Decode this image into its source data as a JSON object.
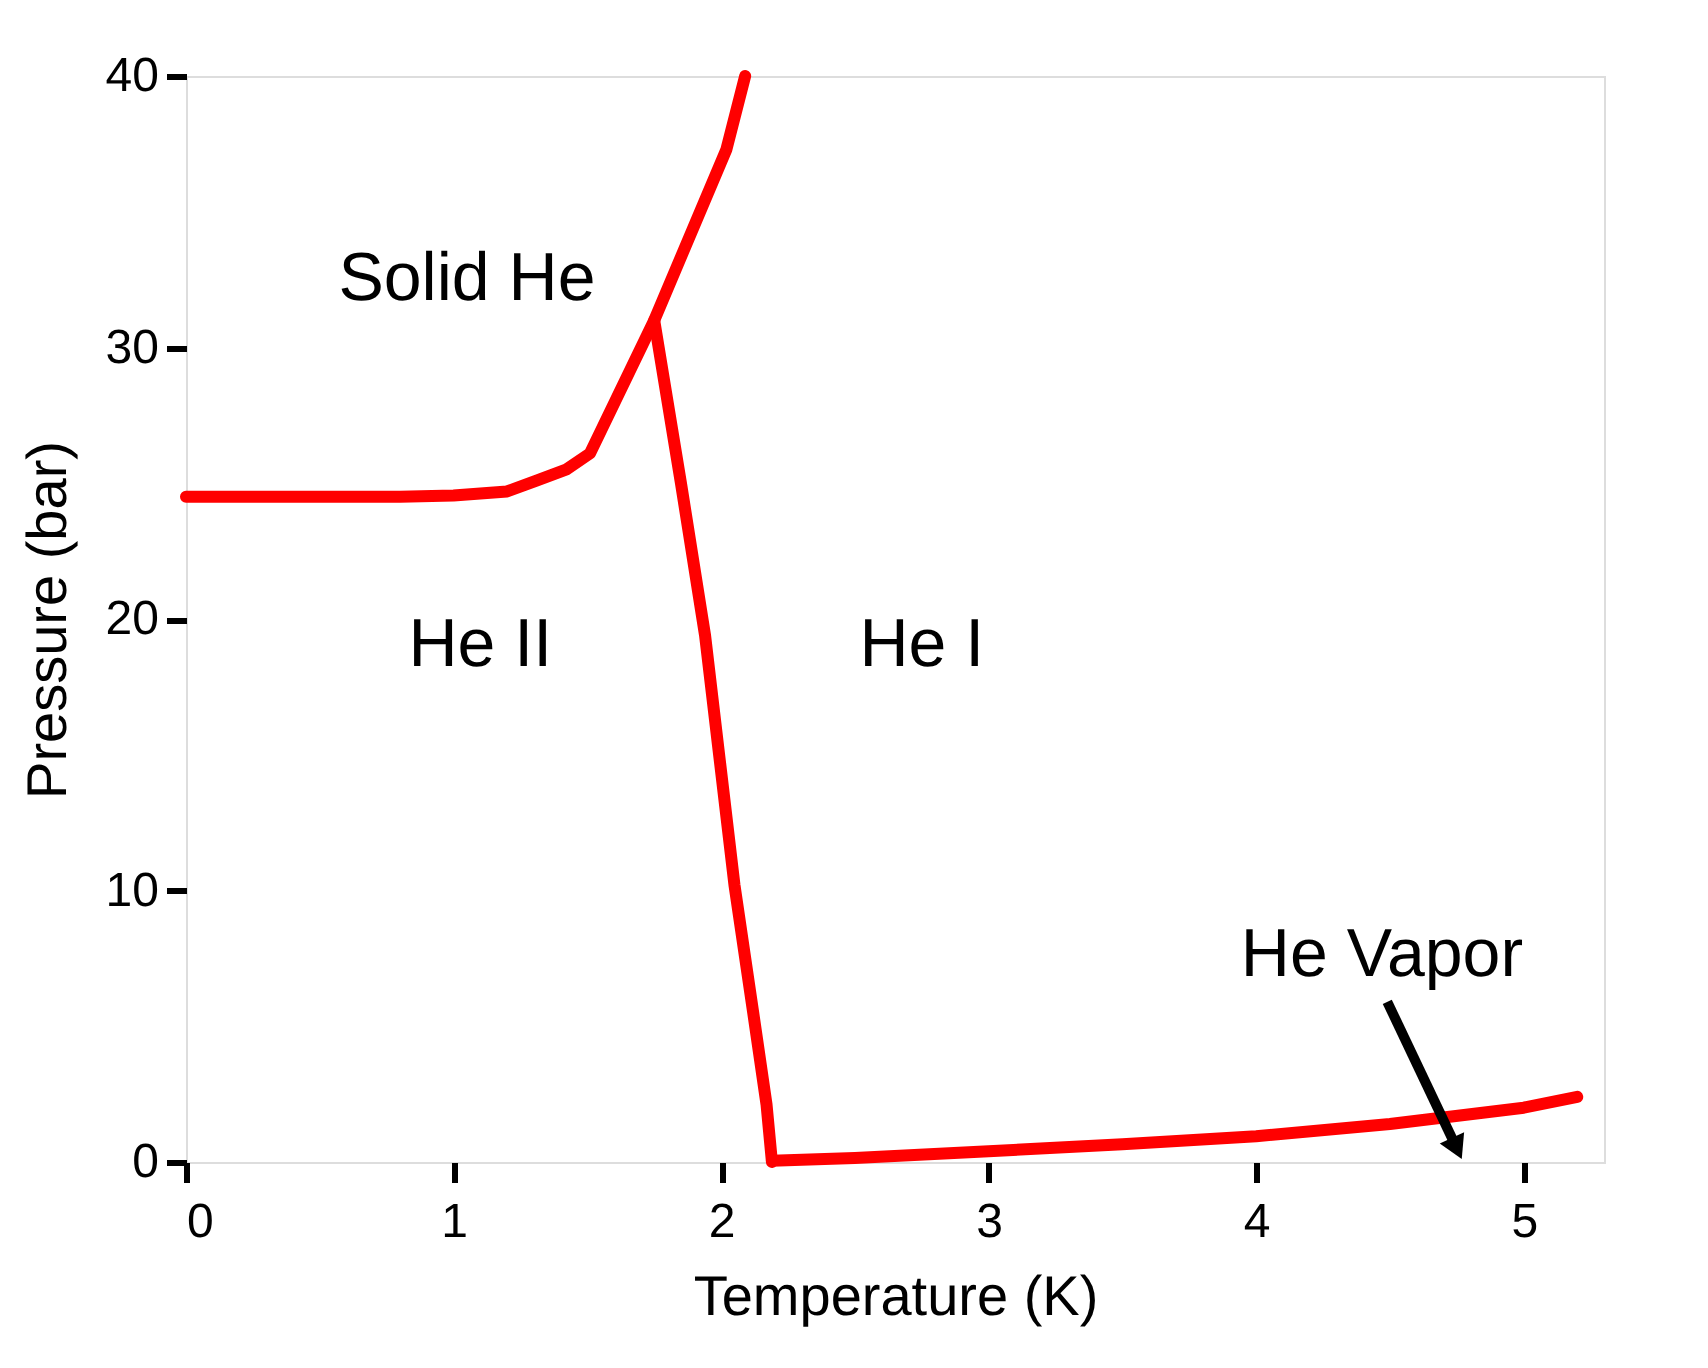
{
  "chart_data": {
    "type": "line",
    "xlabel": "Temperature (K)",
    "ylabel": "Pressure (bar)",
    "xlim": [
      0,
      5.3
    ],
    "ylim": [
      0,
      40
    ],
    "xticks": [
      0,
      1,
      2,
      3,
      4,
      5
    ],
    "yticks": [
      0,
      10,
      20,
      30,
      40
    ],
    "marker": "none",
    "line_style": "solid",
    "series": [
      {
        "color": "#ff0000",
        "x": [
          0,
          0.8,
          1.0,
          1.2,
          1.31,
          1.42,
          1.51,
          1.75,
          2.02,
          2.09
        ],
        "values": [
          24.5,
          24.5,
          24.55,
          24.7,
          25.1,
          25.5,
          26.1,
          31.0,
          37.3,
          40
        ]
      },
      {
        "color": "#ff0000",
        "x": [
          1.75,
          1.85,
          1.94,
          2.05,
          2.12,
          2.17,
          2.19
        ],
        "values": [
          31.0,
          25.0,
          19.4,
          10.2,
          5.5,
          2.1,
          0
        ]
      },
      {
        "color": "#ff0000",
        "x": [
          2.19,
          2.5,
          3.0,
          3.5,
          4.0,
          4.5,
          5.0,
          5.2
        ],
        "values": [
          0.05,
          0.15,
          0.4,
          0.65,
          0.95,
          1.4,
          2.0,
          2.4
        ]
      }
    ],
    "annotations": [
      "Solid He",
      "He II",
      "He I",
      "He Vapor"
    ]
  }
}
